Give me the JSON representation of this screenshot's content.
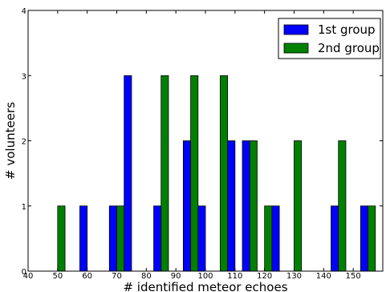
{
  "chart_data": {
    "type": "bar",
    "xlabel": "# identified meteor echoes",
    "ylabel": "# volunteers",
    "xlim": [
      40,
      160
    ],
    "ylim": [
      0,
      4
    ],
    "x_ticks": [
      "40",
      "50",
      "60",
      "70",
      "80",
      "90",
      "100",
      "110",
      "120",
      "130",
      "140",
      "150"
    ],
    "y_ticks": [
      "0",
      "1",
      "2",
      "3",
      "4"
    ],
    "bin_width": 5,
    "bins": [
      45,
      50,
      55,
      60,
      65,
      70,
      75,
      80,
      85,
      90,
      95,
      100,
      105,
      110,
      115,
      120,
      125,
      130,
      135,
      140,
      145,
      150,
      155
    ],
    "series": [
      {
        "name": "1st group",
        "color": "#0000ff",
        "values": [
          0,
          0,
          0,
          1,
          0,
          1,
          3,
          0,
          1,
          0,
          2,
          1,
          0,
          2,
          2,
          0,
          1,
          0,
          0,
          0,
          1,
          0,
          1
        ]
      },
      {
        "name": "2nd group",
        "color": "#008000",
        "values": [
          0,
          1,
          0,
          0,
          0,
          1,
          0,
          0,
          3,
          0,
          3,
          0,
          3,
          0,
          2,
          1,
          0,
          2,
          0,
          0,
          2,
          0,
          1
        ]
      }
    ],
    "legend_position": "top-right",
    "grid": false
  }
}
